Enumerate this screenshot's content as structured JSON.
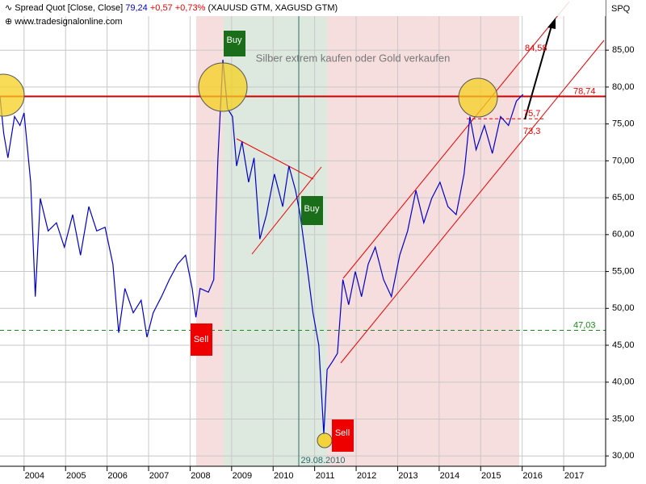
{
  "chart_data": {
    "type": "line",
    "header": {
      "name": "Spread Quot [Close, Close]",
      "last": "79,24",
      "change": "+0,57",
      "change_pct": "+0,73%",
      "symbols": "(XAUUSD GTM, XAGUSD GTM)"
    },
    "source": "www.tradesignalonline.com",
    "axis_label": "SPQ",
    "annotation": "Silber extrem kaufen oder Gold verkaufen",
    "cursor_date": "29.08.2010",
    "signals": [
      "Buy",
      "Buy",
      "Sell",
      "Sell"
    ],
    "levels": [
      {
        "value": 84.58,
        "label": "84,58"
      },
      {
        "value": 78.74,
        "label": "78,74"
      },
      {
        "value": 75.7,
        "label": "75,7"
      },
      {
        "value": 73.3,
        "label": "73,3"
      },
      {
        "value": 47.03,
        "label": "47,03"
      }
    ],
    "x": [
      2003.42,
      2003.51,
      2003.61,
      2003.77,
      2003.9,
      2004.0,
      2004.16,
      2004.27,
      2004.39,
      2004.58,
      2004.78,
      2004.97,
      2005.17,
      2005.36,
      2005.56,
      2005.75,
      2005.95,
      2006.14,
      2006.28,
      2006.43,
      2006.63,
      2006.82,
      2006.96,
      2007.11,
      2007.31,
      2007.5,
      2007.7,
      2007.89,
      2008.05,
      2008.14,
      2008.24,
      2008.44,
      2008.57,
      2008.67,
      2008.79,
      2008.9,
      2009.02,
      2009.12,
      2009.25,
      2009.41,
      2009.54,
      2009.68,
      2009.84,
      2010.03,
      2010.23,
      2010.38,
      2010.54,
      2010.65,
      2010.81,
      2010.96,
      2011.1,
      2011.22,
      2011.3,
      2011.43,
      2011.55,
      2011.68,
      2011.82,
      2011.98,
      2012.13,
      2012.29,
      2012.46,
      2012.66,
      2012.85,
      2013.05,
      2013.24,
      2013.44,
      2013.63,
      2013.82,
      2014.02,
      2014.21,
      2014.41,
      2014.6,
      2014.74,
      2014.89,
      2015.09,
      2015.28,
      2015.48,
      2015.67,
      2015.86,
      2016.02
    ],
    "series": [
      {
        "name": "Spread Quot",
        "color": "#0000cc",
        "values": [
          78.7,
          73.7,
          70.4,
          76,
          74.8,
          76.5,
          67.1,
          51.6,
          64.9,
          60.5,
          61.6,
          58.3,
          62.7,
          57.2,
          63.8,
          60.5,
          61,
          56,
          46.7,
          52.7,
          49.4,
          51.1,
          46.1,
          49.4,
          51.6,
          53.9,
          56,
          57.2,
          52.7,
          48.8,
          52.7,
          52.2,
          53.9,
          70.4,
          83.7,
          77.1,
          76,
          69.3,
          72.6,
          67.1,
          70.4,
          59.4,
          62.7,
          68.2,
          63.8,
          69.3,
          66,
          62.7,
          56,
          49.4,
          45,
          32.9,
          41.7,
          42.8,
          43.9,
          53.9,
          50.5,
          55,
          51.6,
          56,
          58.3,
          53.9,
          51.6,
          57.2,
          60.5,
          66,
          61.6,
          64.9,
          67.1,
          63.8,
          62.7,
          68.2,
          76,
          71.5,
          74.8,
          71,
          76,
          74.8,
          78.1,
          79
        ]
      }
    ],
    "xlim": [
      2003.42,
      2018.01
    ],
    "ylim": [
      28.6,
      91.8
    ],
    "xticks": [
      2004,
      2005,
      2006,
      2007,
      2008,
      2009,
      2010,
      2011,
      2012,
      2013,
      2014,
      2015,
      2016,
      2017
    ],
    "yticks": [
      {
        "value": 30,
        "label": "30,00"
      },
      {
        "value": 35,
        "label": "35,00"
      },
      {
        "value": 40,
        "label": "40,00"
      },
      {
        "value": 45,
        "label": "45,00"
      },
      {
        "value": 50,
        "label": "50,00"
      },
      {
        "value": 55,
        "label": "55,00"
      },
      {
        "value": 60,
        "label": "60,00"
      },
      {
        "value": 65,
        "label": "65,00"
      },
      {
        "value": 70,
        "label": "70,00"
      },
      {
        "value": 75,
        "label": "75,00"
      },
      {
        "value": 80,
        "label": "80,00"
      },
      {
        "value": 85,
        "label": "85,00"
      }
    ],
    "grid": true
  }
}
